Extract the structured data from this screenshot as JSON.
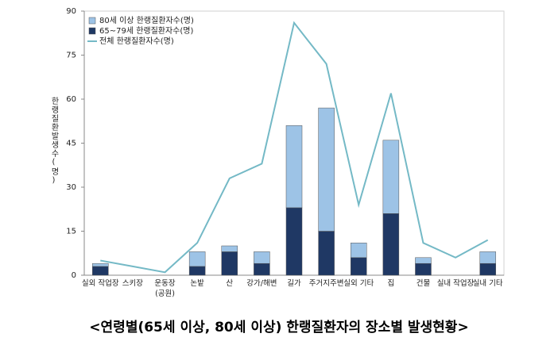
{
  "chart_data": {
    "type": "bar",
    "title": "<연령별(65세 이상, 80세 이상) 한랭질환자의 장소별 발생현황>",
    "y_label": "한랭질환발생수(명)",
    "categories": [
      "실외 작업장",
      "스키장",
      "운동장\n(공원)",
      "논밭",
      "산",
      "강가/해변",
      "길가",
      "주거지주변",
      "실외 기타",
      "집",
      "건물",
      "실내 작업장",
      "실내 기타"
    ],
    "series": [
      {
        "name": "65~79세 한랭질환자수(명)",
        "type": "bar",
        "color": "#1f3864",
        "values": [
          3,
          0,
          0,
          3,
          8,
          4,
          23,
          15,
          6,
          21,
          4,
          0,
          4
        ]
      },
      {
        "name": "80세 이상 한랭질환자수(명)",
        "type": "bar",
        "color": "#9dc3e6",
        "values": [
          1,
          0,
          0,
          5,
          2,
          4,
          28,
          42,
          5,
          25,
          2,
          0,
          4
        ]
      },
      {
        "name": "전체 한랭질환자수(명)",
        "type": "line",
        "color": "#74b9c6",
        "values": [
          5,
          3,
          1,
          11,
          33,
          38,
          86,
          72,
          24,
          62,
          11,
          6,
          12
        ]
      }
    ],
    "stacked": true,
    "ylim": [
      0,
      90
    ],
    "yticks": [
      0,
      15,
      30,
      45,
      60,
      75,
      90
    ],
    "grid": false,
    "legend": "top-left"
  }
}
